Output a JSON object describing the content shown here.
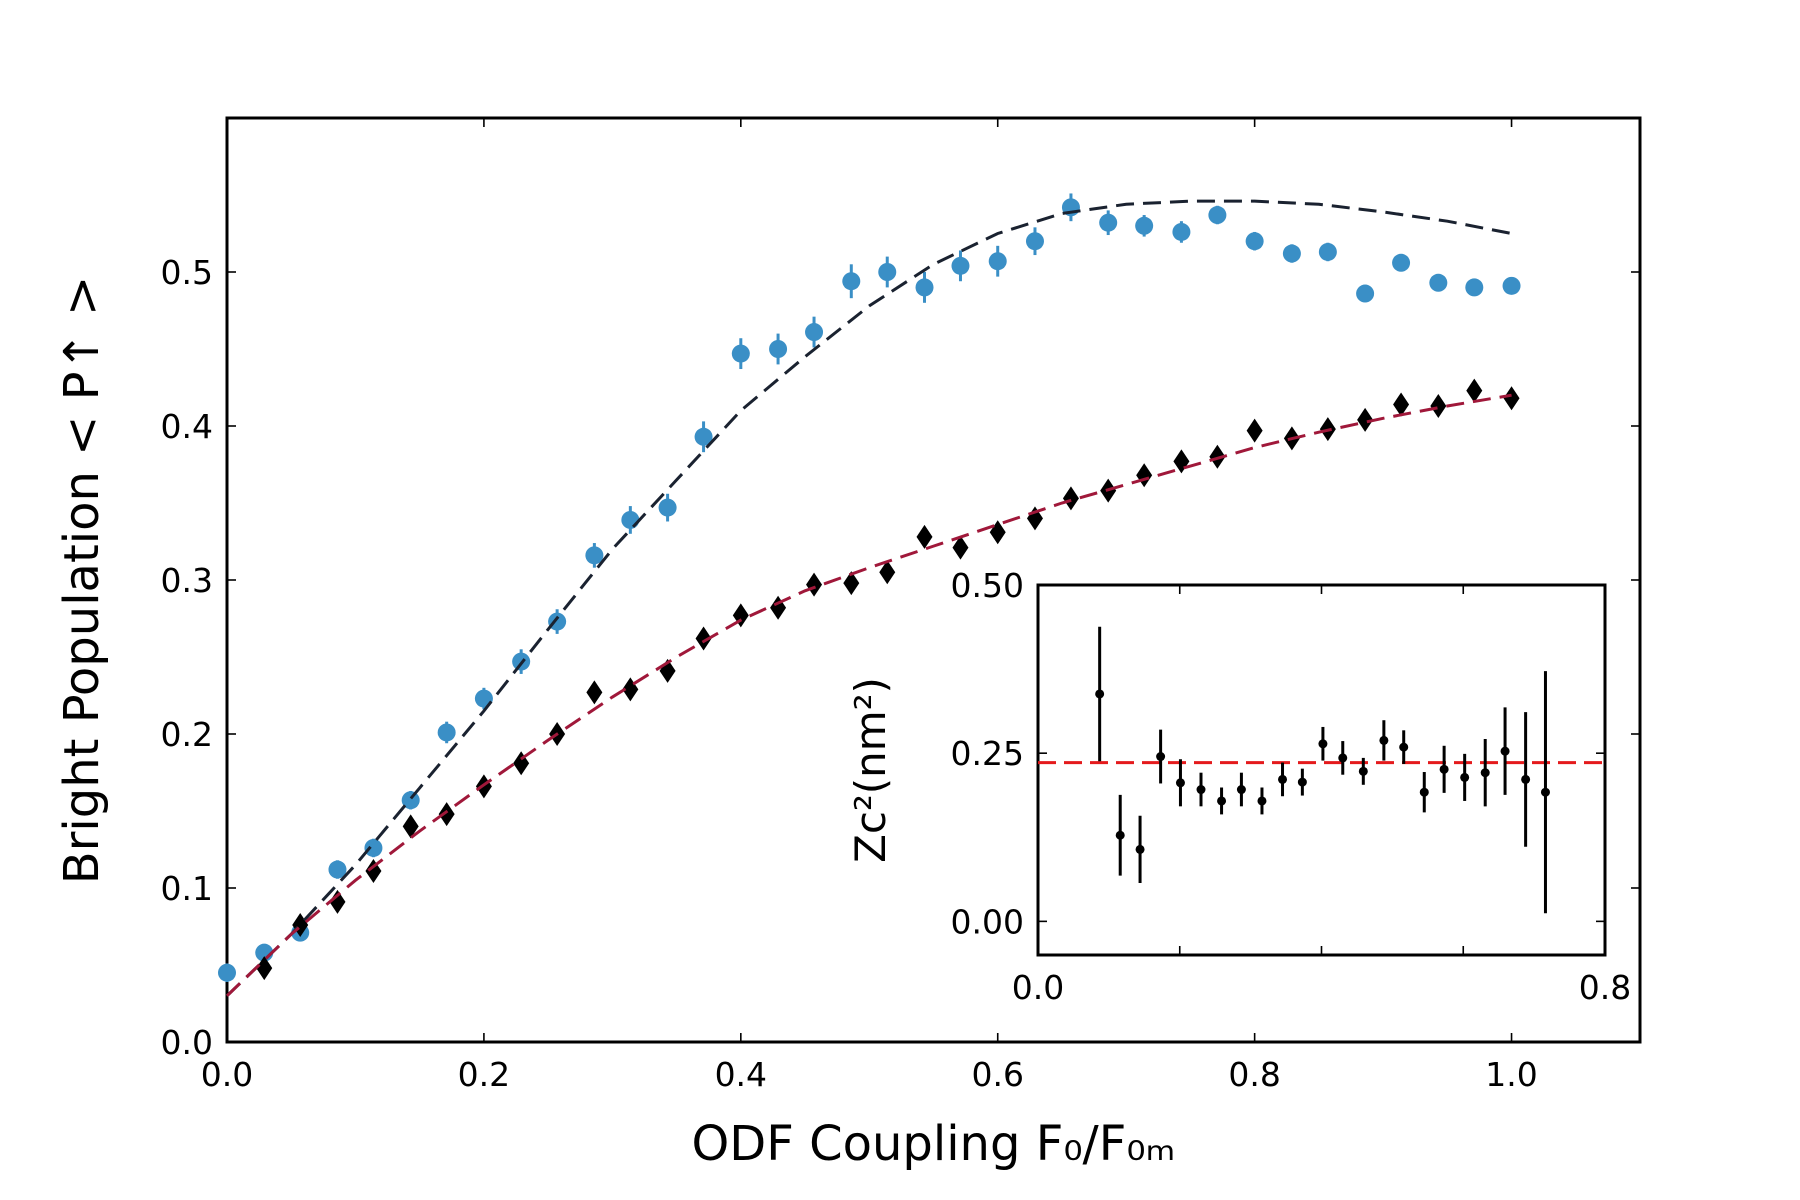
{
  "chart_data": [
    {
      "type": "scatter",
      "xlabel": "ODF Coupling F₀/F₀ₘ",
      "ylabel": "Bright Population < P↑ >",
      "xlim": [
        0,
        1.1
      ],
      "ylim": [
        0,
        0.6
      ],
      "xticks": [
        {
          "value": 0,
          "label": "0.0"
        },
        0.2,
        0.4,
        0.6,
        0.8,
        {
          "value": 1,
          "label": "1.0"
        }
      ],
      "yticks": [
        {
          "value": 0,
          "label": "0.0"
        },
        0.1,
        0.2,
        0.3,
        0.4,
        0.5
      ],
      "series": [
        {
          "color": "#3a8fc6",
          "marker": "circle",
          "x": [
            0,
            0.029,
            0.057,
            0.086,
            0.114,
            0.143,
            0.171,
            0.2,
            0.229,
            0.257,
            0.286,
            0.314,
            0.343,
            0.371,
            0.4,
            0.429,
            0.457,
            0.486,
            0.514,
            0.543,
            0.571,
            0.6,
            0.629,
            0.657,
            0.686,
            0.714,
            0.743,
            0.771,
            0.8,
            0.829,
            0.857,
            0.886,
            0.914,
            0.943,
            0.971,
            1.0
          ],
          "values": [
            0.045,
            0.058,
            0.071,
            0.112,
            0.126,
            0.157,
            0.201,
            0.223,
            0.247,
            0.273,
            0.316,
            0.339,
            0.347,
            0.393,
            0.447,
            0.45,
            0.461,
            0.494,
            0.5,
            0.49,
            0.504,
            0.507,
            0.52,
            0.542,
            0.532,
            0.53,
            0.526,
            0.537,
            0.52,
            0.512,
            0.513,
            0.486,
            0.506,
            0.493,
            0.49,
            0.491
          ],
          "errors": [
            0.006,
            0.005,
            0.005,
            0.006,
            0.006,
            0.006,
            0.007,
            0.007,
            0.008,
            0.008,
            0.008,
            0.009,
            0.009,
            0.01,
            0.01,
            0.01,
            0.01,
            0.011,
            0.01,
            0.01,
            0.01,
            0.01,
            0.009,
            0.009,
            0.008,
            0.007,
            0.007,
            0.006,
            0.006,
            0.006,
            0.006,
            0.005,
            0.005,
            0.005,
            0.005,
            0.005
          ]
        },
        {
          "color": "#000000",
          "marker": "diamond",
          "x": [
            0.029,
            0.057,
            0.086,
            0.114,
            0.143,
            0.171,
            0.2,
            0.229,
            0.257,
            0.286,
            0.314,
            0.343,
            0.371,
            0.4,
            0.429,
            0.457,
            0.486,
            0.514,
            0.543,
            0.571,
            0.6,
            0.629,
            0.657,
            0.686,
            0.714,
            0.743,
            0.771,
            0.8,
            0.829,
            0.857,
            0.886,
            0.914,
            0.943,
            0.971,
            1.0
          ],
          "values": [
            0.048,
            0.076,
            0.091,
            0.111,
            0.14,
            0.148,
            0.166,
            0.181,
            0.2,
            0.227,
            0.229,
            0.241,
            0.262,
            0.277,
            0.282,
            0.297,
            0.298,
            0.305,
            0.328,
            0.321,
            0.331,
            0.34,
            0.353,
            0.358,
            0.368,
            0.377,
            0.38,
            0.397,
            0.392,
            0.398,
            0.404,
            0.414,
            0.413,
            0.423,
            0.418
          ]
        },
        {
          "color": "#1a2230",
          "style": "dashed",
          "x": [
            0,
            0.05,
            0.1,
            0.15,
            0.2,
            0.25,
            0.3,
            0.35,
            0.4,
            0.45,
            0.5,
            0.55,
            0.6,
            0.65,
            0.7,
            0.75,
            0.8,
            0.85,
            0.9,
            0.95,
            1.0
          ],
          "values": [
            0.03,
            0.07,
            0.115,
            0.165,
            0.215,
            0.268,
            0.32,
            0.365,
            0.41,
            0.445,
            0.478,
            0.505,
            0.525,
            0.538,
            0.544,
            0.546,
            0.546,
            0.544,
            0.539,
            0.533,
            0.525
          ]
        },
        {
          "color": "#a0183a",
          "style": "dashed",
          "x": [
            0,
            0.05,
            0.1,
            0.15,
            0.2,
            0.25,
            0.3,
            0.35,
            0.4,
            0.45,
            0.5,
            0.55,
            0.6,
            0.65,
            0.7,
            0.75,
            0.8,
            0.85,
            0.9,
            0.95,
            1.0
          ],
          "values": [
            0.03,
            0.07,
            0.105,
            0.137,
            0.167,
            0.196,
            0.224,
            0.25,
            0.274,
            0.293,
            0.308,
            0.322,
            0.336,
            0.35,
            0.362,
            0.374,
            0.386,
            0.396,
            0.405,
            0.413,
            0.42
          ]
        }
      ]
    },
    {
      "type": "scatter",
      "ylabel": "Zc²(nm²)",
      "xlim": [
        0,
        0.8
      ],
      "ylim": [
        -0.05,
        0.5
      ],
      "xticks": [
        {
          "value": 0,
          "label": "0.0"
        },
        0.8
      ],
      "xminorticks": [
        0.2,
        0.4,
        0.6
      ],
      "yticks": [
        {
          "value": 0,
          "label": "0.00"
        },
        0.25,
        {
          "value": 0.5,
          "label": "0.50"
        }
      ],
      "reference_line": {
        "value": 0.236,
        "color": "#e41a1c",
        "style": "dashed"
      },
      "series": [
        {
          "color": "#000000",
          "marker": "dot",
          "x": [
            0.087,
            0.116,
            0.144,
            0.173,
            0.201,
            0.23,
            0.259,
            0.287,
            0.316,
            0.345,
            0.373,
            0.402,
            0.43,
            0.459,
            0.488,
            0.516,
            0.545,
            0.573,
            0.602,
            0.631,
            0.659,
            0.688,
            0.716
          ],
          "values": [
            0.338,
            0.128,
            0.107,
            0.245,
            0.206,
            0.196,
            0.179,
            0.196,
            0.179,
            0.211,
            0.207,
            0.264,
            0.243,
            0.223,
            0.269,
            0.259,
            0.192,
            0.226,
            0.214,
            0.221,
            0.253,
            0.211,
            0.192
          ],
          "errors": [
            0.1,
            0.06,
            0.05,
            0.04,
            0.035,
            0.025,
            0.02,
            0.025,
            0.02,
            0.025,
            0.02,
            0.025,
            0.025,
            0.02,
            0.03,
            0.025,
            0.03,
            0.035,
            0.035,
            0.05,
            0.065,
            0.1,
            0.18
          ]
        }
      ]
    }
  ]
}
